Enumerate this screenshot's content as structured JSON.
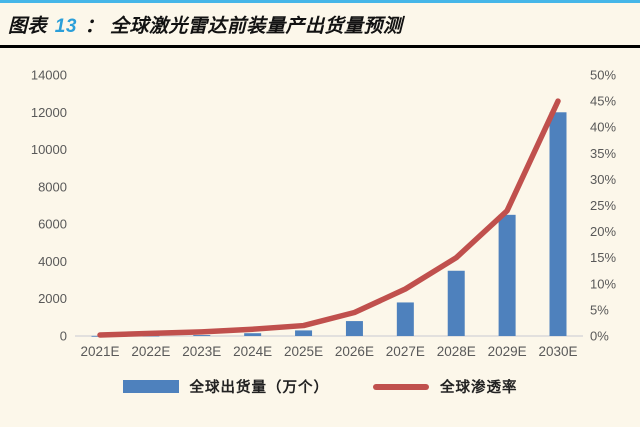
{
  "title": {
    "prefix": "图表",
    "number": "13",
    "separator": "：",
    "text": "全球激光雷达前装量产出货量预测"
  },
  "colors": {
    "background": "#FCF7EA",
    "bar": "#4E81BD",
    "line": "#C0504D",
    "title_number": "#2B9FD9",
    "top_rule": "#45B6E8",
    "title_bottom_rule": "#000000",
    "axis_text": "#595959",
    "axis_line": "#D9D9D9"
  },
  "chart_data": {
    "type": "bar+line combo",
    "title": "全球激光雷达前装量产出货量预测",
    "categories": [
      "2021E",
      "2022E",
      "2023E",
      "2024E",
      "2025E",
      "2026E",
      "2027E",
      "2028E",
      "2029E",
      "2030E"
    ],
    "series": [
      {
        "name": "全球出货量（万个）",
        "type": "bar",
        "axis": "left",
        "color": "#4E81BD",
        "values": [
          5,
          20,
          50,
          150,
          300,
          800,
          1800,
          3500,
          6500,
          12000
        ]
      },
      {
        "name": "全球渗透率",
        "type": "line",
        "axis": "right",
        "color": "#C0504D",
        "values_pct": [
          0.2,
          0.5,
          0.8,
          1.3,
          2.0,
          4.5,
          9.0,
          15.0,
          24.0,
          45.0
        ]
      }
    ],
    "left_axis": {
      "min": 0,
      "max": 14000,
      "step": 2000,
      "ticks": [
        "0",
        "2000",
        "4000",
        "6000",
        "8000",
        "10000",
        "12000",
        "14000"
      ]
    },
    "right_axis": {
      "min": 0,
      "max": 50,
      "step": 5,
      "ticks": [
        "0%",
        "5%",
        "10%",
        "15%",
        "20%",
        "25%",
        "30%",
        "35%",
        "40%",
        "45%",
        "50%"
      ]
    },
    "grid": "off",
    "legend_position": "bottom",
    "legend": [
      {
        "label": "全球出货量（万个）",
        "swatch": "bar"
      },
      {
        "label": "全球渗透率",
        "swatch": "line"
      }
    ]
  }
}
